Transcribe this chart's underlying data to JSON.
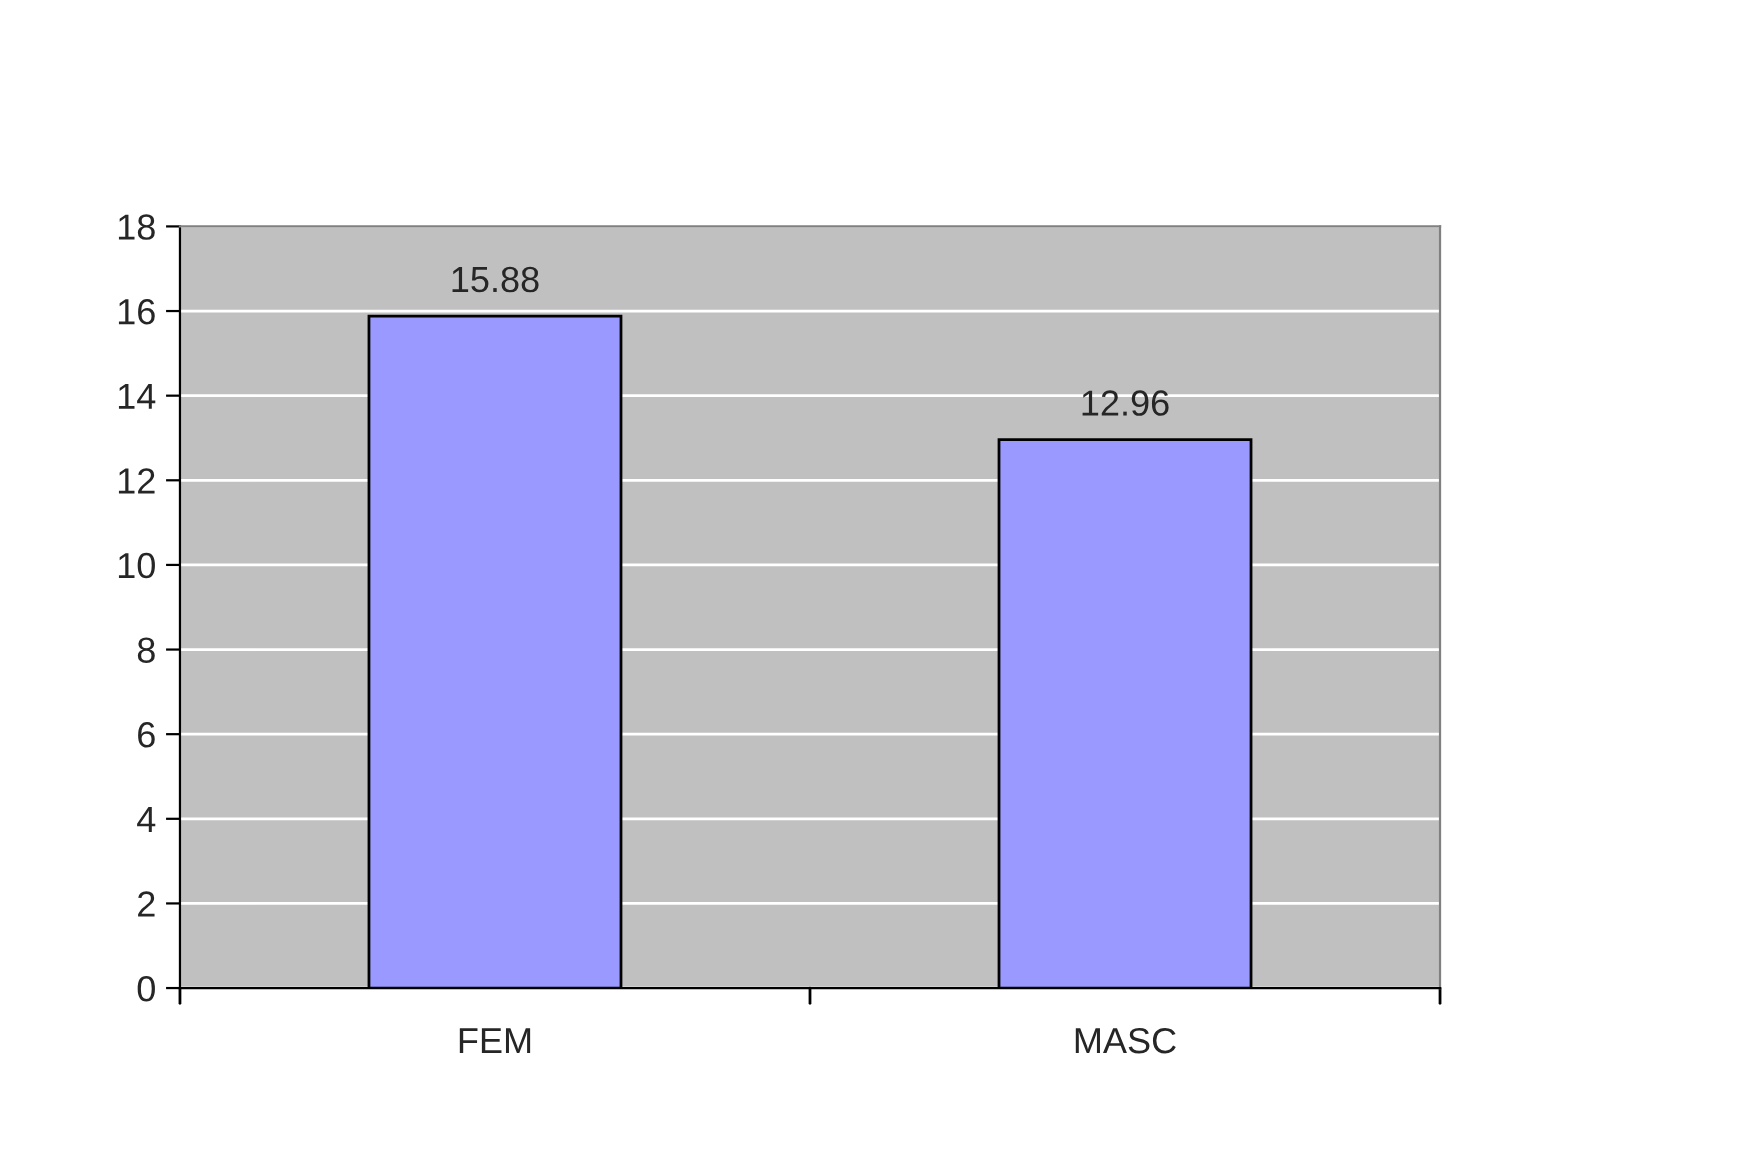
{
  "chart_data": {
    "type": "bar",
    "categories": [
      "FEM",
      "MASC"
    ],
    "values": [
      15.88,
      12.96
    ],
    "color": "#9999ff",
    "ylim": [
      0,
      18
    ],
    "yticks": [
      0,
      2,
      4,
      6,
      8,
      10,
      12,
      14,
      16,
      18
    ],
    "grid": "y",
    "data_labels": true
  }
}
